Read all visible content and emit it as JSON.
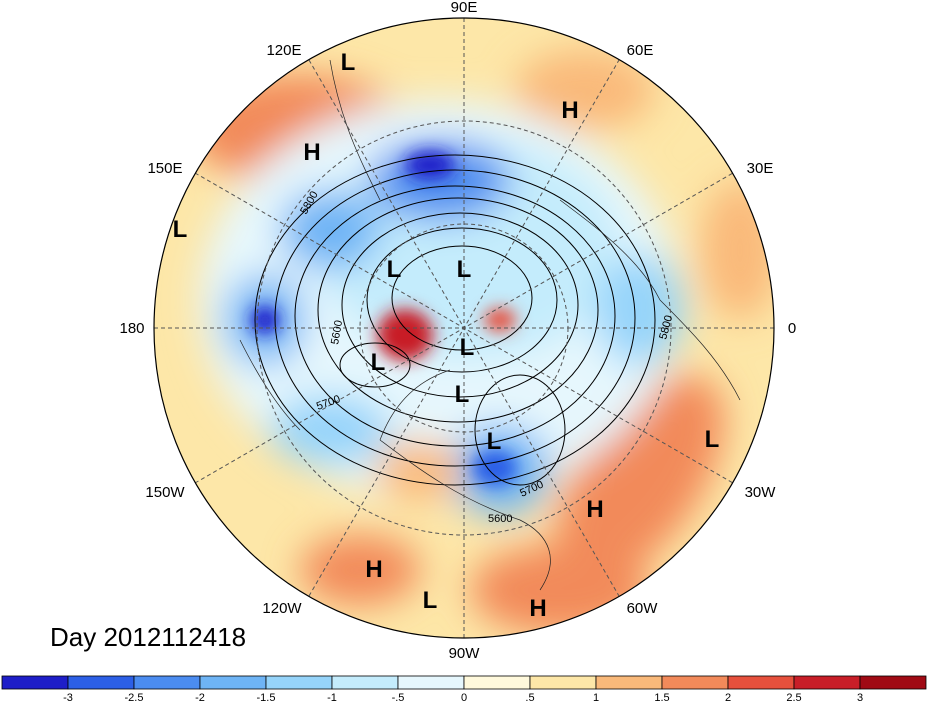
{
  "title": "Day 2012112418",
  "longitude_labels": [
    "90E",
    "120E",
    "60E",
    "150E",
    "30E",
    "180",
    "0",
    "150W",
    "30W",
    "120W",
    "60W",
    "90W"
  ],
  "pressure_systems": [
    {
      "type": "L"
    },
    {
      "type": "H"
    },
    {
      "type": "H"
    },
    {
      "type": "L"
    },
    {
      "type": "L"
    },
    {
      "type": "L"
    },
    {
      "type": "L"
    },
    {
      "type": "L"
    },
    {
      "type": "L"
    },
    {
      "type": "L"
    },
    {
      "type": "L"
    },
    {
      "type": "H"
    },
    {
      "type": "H"
    },
    {
      "type": "L"
    },
    {
      "type": "H"
    }
  ],
  "contour_labels": [
    "5800",
    "5600",
    "5700",
    "5800",
    "5700",
    "5600"
  ],
  "colorbar": {
    "ticks": [
      "-3",
      "-2.5",
      "-2",
      "-1.5",
      "-1",
      "-.5",
      "0",
      ".5",
      "1",
      "1.5",
      "2",
      "2.5",
      "3"
    ],
    "colors": [
      "#1e1ec8",
      "#2c5fe6",
      "#4b8cf0",
      "#6eb4f5",
      "#96d4fa",
      "#c4ecfc",
      "#e6f7fd",
      "#fff9dc",
      "#fde7a8",
      "#f9b97a",
      "#f28a5a",
      "#e6503c",
      "#c81e28",
      "#a00a14"
    ]
  }
}
